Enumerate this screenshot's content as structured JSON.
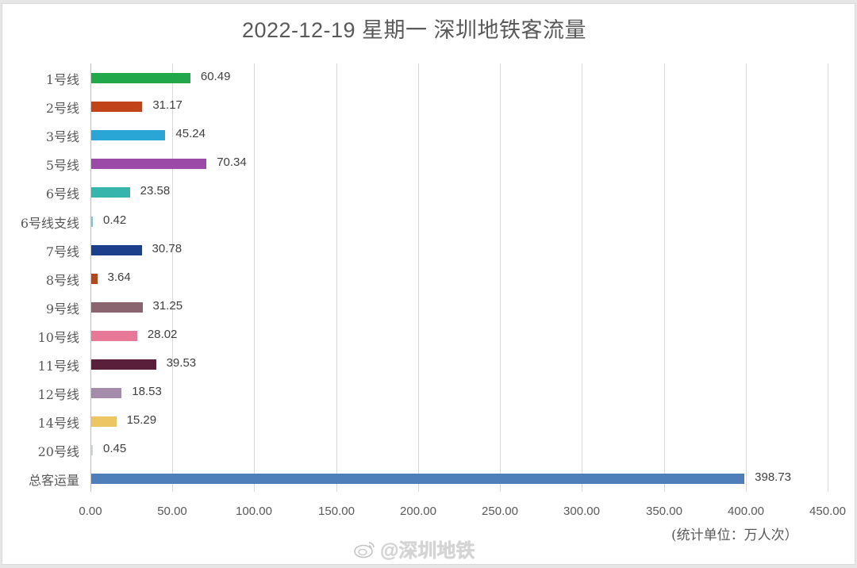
{
  "title": "2022-12-19 星期一 深圳地铁客流量",
  "unit_label": "(统计单位：万人次）",
  "watermark": "@深圳地铁",
  "axis": {
    "min": 0,
    "max": 450,
    "ticks": [
      "0.00",
      "50.00",
      "100.00",
      "150.00",
      "200.00",
      "250.00",
      "300.00",
      "350.00",
      "400.00",
      "450.00"
    ]
  },
  "rows": [
    {
      "label": "1号线",
      "value": 60.49,
      "value_text": "60.49",
      "color": "#22a74a"
    },
    {
      "label": "2号线",
      "value": 31.17,
      "value_text": "31.17",
      "color": "#c1431a"
    },
    {
      "label": "3号线",
      "value": 45.24,
      "value_text": "45.24",
      "color": "#2aa6d6"
    },
    {
      "label": "5号线",
      "value": 70.34,
      "value_text": "70.34",
      "color": "#9b4aa8"
    },
    {
      "label": "6号线",
      "value": 23.58,
      "value_text": "23.58",
      "color": "#36b5ad"
    },
    {
      "label": "6号线支线",
      "value": 0.42,
      "value_text": "0.42",
      "color": "#7fc9d6"
    },
    {
      "label": "7号线",
      "value": 30.78,
      "value_text": "30.78",
      "color": "#1c3f8c"
    },
    {
      "label": "8号线",
      "value": 3.64,
      "value_text": "3.64",
      "color": "#b5471c"
    },
    {
      "label": "9号线",
      "value": 31.25,
      "value_text": "31.25",
      "color": "#8a6570"
    },
    {
      "label": "10号线",
      "value": 28.02,
      "value_text": "28.02",
      "color": "#e87898"
    },
    {
      "label": "11号线",
      "value": 39.53,
      "value_text": "39.53",
      "color": "#5a1f3a"
    },
    {
      "label": "12号线",
      "value": 18.53,
      "value_text": "18.53",
      "color": "#a58cab"
    },
    {
      "label": "14号线",
      "value": 15.29,
      "value_text": "15.29",
      "color": "#edc563"
    },
    {
      "label": "20号线",
      "value": 0.45,
      "value_text": "0.45",
      "color": "#cfd6dc"
    },
    {
      "label": "总客运量",
      "value": 398.73,
      "value_text": "398.73",
      "color": "#4f7fba"
    }
  ],
  "chart_data": {
    "type": "bar",
    "orientation": "horizontal",
    "title": "2022-12-19 星期一 深圳地铁客流量",
    "xlabel": "(统计单位：万人次）",
    "ylabel": "",
    "xlim": [
      0,
      450
    ],
    "grid": true,
    "legend": "none",
    "categories": [
      "1号线",
      "2号线",
      "3号线",
      "5号线",
      "6号线",
      "6号线支线",
      "7号线",
      "8号线",
      "9号线",
      "10号线",
      "11号线",
      "12号线",
      "14号线",
      "20号线",
      "总客运量"
    ],
    "values": [
      60.49,
      31.17,
      45.24,
      70.34,
      23.58,
      0.42,
      30.78,
      3.64,
      31.25,
      28.02,
      39.53,
      18.53,
      15.29,
      0.45,
      398.73
    ],
    "tick_labels": [
      "0.00",
      "50.00",
      "100.00",
      "150.00",
      "200.00",
      "250.00",
      "300.00",
      "350.00",
      "400.00",
      "450.00"
    ]
  }
}
